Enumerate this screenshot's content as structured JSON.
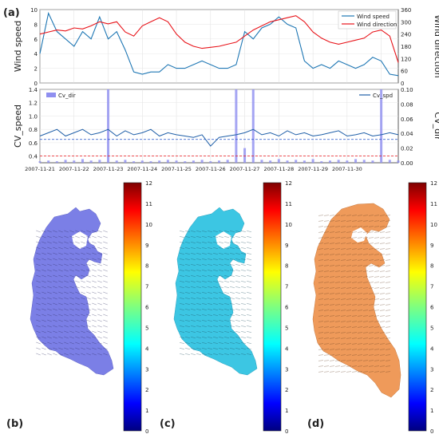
{
  "panel_labels": {
    "a": "(a)",
    "b": "(b)",
    "c": "(c)",
    "d": "(d)"
  },
  "colors": {
    "wind_speed": "#1f77b4",
    "wind_direction": "#e8141a",
    "cv_spd": "#1f5fa8",
    "cv_dir_fill": "#8f8ff0",
    "threshold_red": "#e8141a",
    "threshold_blue": "#1f4fc8",
    "map_b": "#7b7fe6",
    "map_c": "#3cc6e3",
    "map_d": "#ef9a5a"
  },
  "chart_data": [
    {
      "type": "line",
      "panel": "a",
      "ylabel": "Wind speed",
      "y2label": "Wind direction",
      "ylim": [
        0,
        10
      ],
      "y2lim": [
        0,
        360
      ],
      "yticks": [
        "0",
        "2",
        "4",
        "6",
        "8",
        "10"
      ],
      "y2ticks": [
        "0",
        "60",
        "120",
        "180",
        "240",
        "300",
        "360"
      ],
      "legend_placement": "top-right",
      "series": [
        {
          "name": "Wind speed",
          "axis": "left",
          "x": [
            0,
            0.25,
            0.5,
            0.75,
            1,
            1.25,
            1.5,
            1.75,
            2,
            2.25,
            2.5,
            2.75,
            3,
            3.25,
            3.5,
            3.75,
            4,
            4.25,
            4.5,
            4.75,
            5,
            5.25,
            5.5,
            5.75,
            6,
            6.25,
            6.5,
            6.75,
            7,
            7.25,
            7.5,
            7.75,
            8,
            8.25,
            8.5,
            8.75,
            9,
            9.25,
            9.5,
            9.75,
            10,
            10.25,
            10.5
          ],
          "values": [
            4,
            9.5,
            7,
            6,
            5,
            7,
            6,
            9,
            6,
            7,
            4.5,
            1.5,
            1.2,
            1.5,
            1.5,
            2.5,
            2,
            2,
            2.5,
            3,
            2.5,
            2,
            2,
            2.5,
            7,
            6,
            7.5,
            8,
            9,
            8,
            7.5,
            3,
            2,
            2.5,
            2,
            3,
            2.5,
            2,
            2.5,
            3.5,
            3,
            1.2,
            1
          ]
        },
        {
          "name": "Wind direction",
          "axis": "right",
          "x": [
            0,
            0.25,
            0.5,
            0.75,
            1,
            1.25,
            1.5,
            1.75,
            2,
            2.25,
            2.5,
            2.75,
            3,
            3.25,
            3.5,
            3.75,
            4,
            4.25,
            4.5,
            4.75,
            5,
            5.25,
            5.5,
            5.75,
            6,
            6.25,
            6.5,
            6.75,
            7,
            7.25,
            7.5,
            7.75,
            8,
            8.25,
            8.5,
            8.75,
            9,
            9.25,
            9.5,
            9.75,
            10,
            10.25,
            10.5
          ],
          "values": [
            240,
            250,
            260,
            255,
            270,
            265,
            280,
            300,
            290,
            300,
            250,
            230,
            280,
            300,
            320,
            300,
            240,
            200,
            180,
            170,
            175,
            180,
            190,
            200,
            230,
            260,
            280,
            300,
            310,
            320,
            330,
            300,
            250,
            220,
            200,
            190,
            200,
            210,
            220,
            250,
            260,
            230,
            100
          ]
        }
      ]
    },
    {
      "type": "area",
      "panel": "a2",
      "ylabel": "CV_speed",
      "y2label": "CV_dir",
      "ylim": [
        0.3,
        1.4
      ],
      "y2lim": [
        0,
        0.1
      ],
      "yticks": [
        "0.4",
        "0.6",
        "0.8",
        "1.0",
        "1.2",
        "1.4"
      ],
      "y2ticks": [
        "0.00",
        "0.02",
        "0.04",
        "0.06",
        "0.08",
        "0.10"
      ],
      "x_tick_labels": [
        "2007-11-21",
        "2007-11-22",
        "2007-11-23",
        "2007-11-24",
        "2007-11-25",
        "2007-11-26",
        "2007-11-27",
        "2007-11-28",
        "2007-11-29",
        "2007-11-30"
      ],
      "thresholds": {
        "cv_speed_red": 0.4,
        "cv_speed_blue": 0.65
      },
      "series": [
        {
          "name": "Cv_spd",
          "axis": "left",
          "x": [
            0,
            0.25,
            0.5,
            0.75,
            1,
            1.25,
            1.5,
            1.75,
            2,
            2.25,
            2.5,
            2.75,
            3,
            3.25,
            3.5,
            3.75,
            4,
            4.25,
            4.5,
            4.75,
            5,
            5.25,
            5.5,
            5.75,
            6,
            6.25,
            6.5,
            6.75,
            7,
            7.25,
            7.5,
            7.75,
            8,
            8.25,
            8.5,
            8.75,
            9,
            9.25,
            9.5,
            9.75,
            10,
            10.25,
            10.5
          ],
          "values": [
            0.7,
            0.75,
            0.8,
            0.7,
            0.75,
            0.8,
            0.72,
            0.75,
            0.8,
            0.7,
            0.78,
            0.72,
            0.75,
            0.8,
            0.7,
            0.75,
            0.72,
            0.7,
            0.68,
            0.72,
            0.55,
            0.68,
            0.7,
            0.72,
            0.75,
            0.8,
            0.72,
            0.75,
            0.7,
            0.78,
            0.72,
            0.75,
            0.7,
            0.72,
            0.75,
            0.78,
            0.7,
            0.72,
            0.75,
            0.7,
            0.72,
            0.75,
            0.72
          ]
        },
        {
          "name": "Cv_dir",
          "axis": "right",
          "x": [
            0,
            0.25,
            0.5,
            0.75,
            1,
            1.25,
            1.5,
            1.75,
            2,
            2.25,
            2.5,
            2.75,
            3,
            3.25,
            3.5,
            3.75,
            4,
            4.25,
            4.5,
            4.75,
            5,
            5.25,
            5.5,
            5.75,
            6,
            6.25,
            6.5,
            6.75,
            7,
            7.25,
            7.5,
            7.75,
            8,
            8.25,
            8.5,
            8.75,
            9,
            9.25,
            9.5,
            9.75,
            10,
            10.25,
            10.5
          ],
          "values": [
            0.002,
            0.003,
            0.002,
            0.004,
            0.003,
            0.005,
            0.003,
            0.004,
            0.1,
            0.003,
            0.004,
            0.002,
            0.003,
            0.002,
            0.003,
            0.004,
            0.003,
            0.002,
            0.003,
            0.004,
            0.002,
            0.003,
            0.004,
            0.1,
            0.02,
            0.1,
            0.004,
            0.003,
            0.005,
            0.003,
            0.004,
            0.003,
            0.005,
            0.002,
            0.003,
            0.004,
            0.003,
            0.005,
            0.004,
            0.003,
            0.1,
            0.004,
            0.003
          ]
        }
      ]
    }
  ],
  "colorbar": {
    "ticks": [
      "0",
      "1",
      "2",
      "3",
      "4",
      "5",
      "6",
      "7",
      "8",
      "9",
      "10",
      "11",
      "12"
    ],
    "range": [
      0,
      12
    ]
  }
}
